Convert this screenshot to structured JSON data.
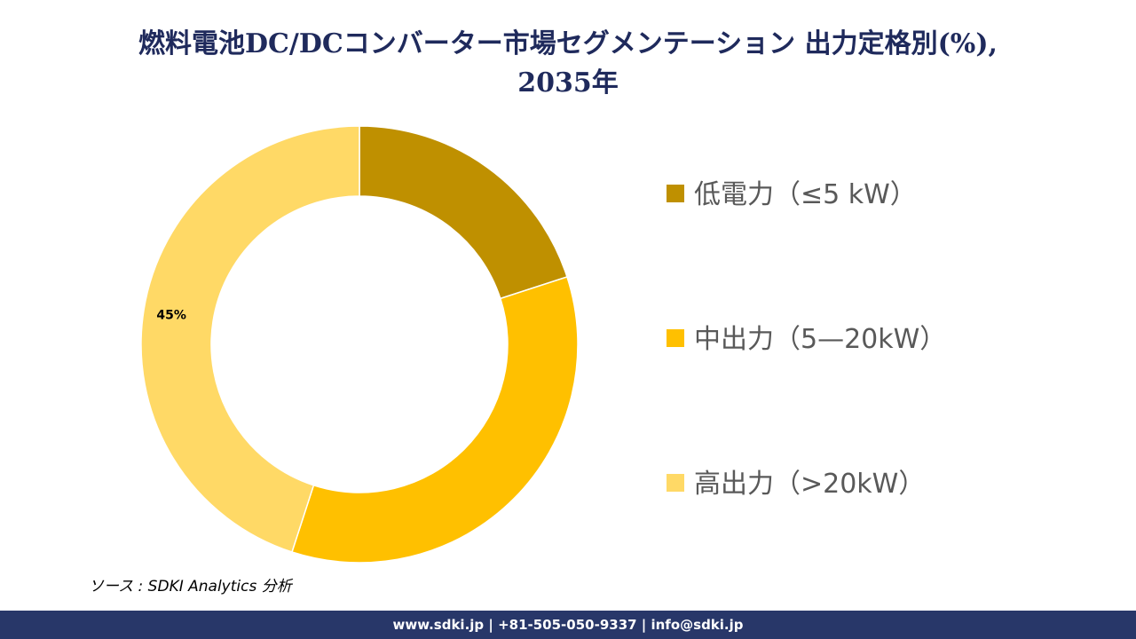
{
  "chart_data": {
    "type": "donut",
    "title": "燃料電池DC/DCコンバーター市場セグメンテーション 出力定格別(%),\n2035年",
    "categories": [
      "低電力（≤5 kW）",
      "中出力（5—20kW）",
      "高出力（>20kW）"
    ],
    "values": [
      20,
      35,
      45
    ],
    "value_labels": [
      null,
      null,
      "45%"
    ],
    "colors": [
      "#BF9000",
      "#FFC000",
      "#FFD966"
    ],
    "legend": "right"
  },
  "source": "ソース : SDKI Analytics 分析",
  "footer": "www.sdki.jp | +81-505-050-9337 | info@sdki.jp"
}
